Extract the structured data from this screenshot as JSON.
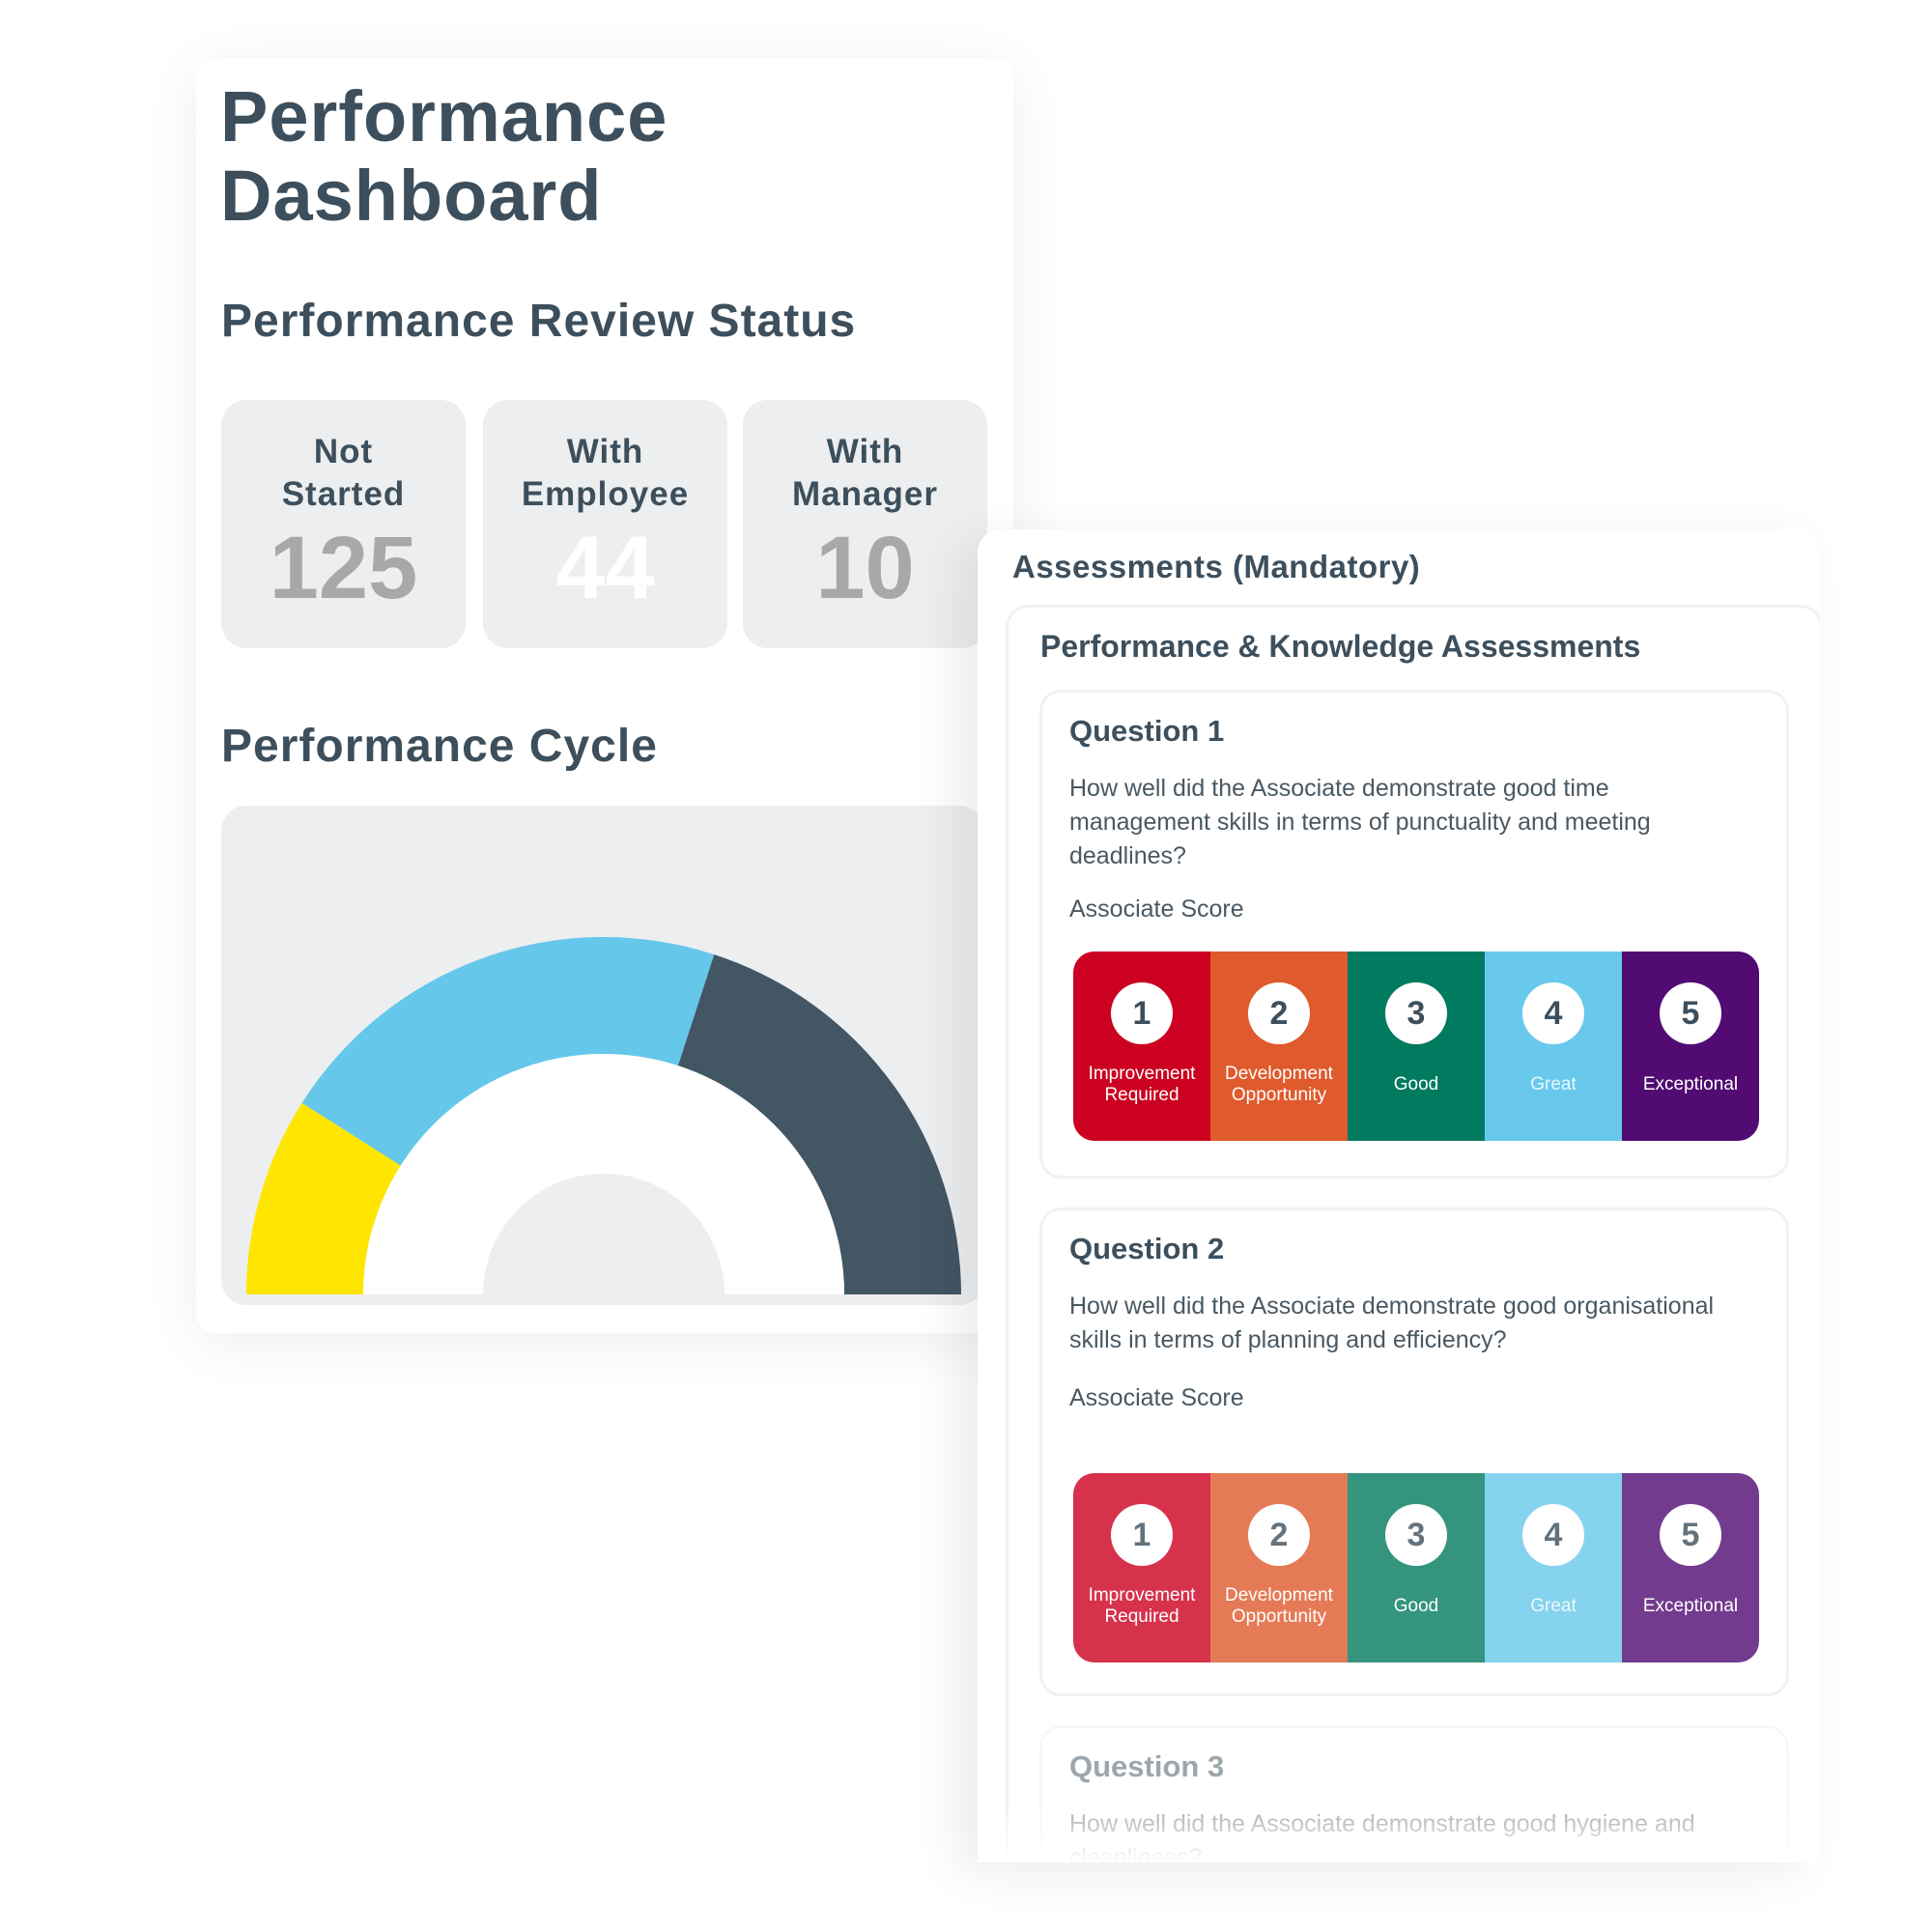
{
  "dashboard": {
    "title_line1": "Performance",
    "title_line2": "Dashboard",
    "review_status": {
      "heading": "Performance Review Status",
      "cards": [
        {
          "label_line1": "Not",
          "label_line2": "Started",
          "value": "125"
        },
        {
          "label_line1": "With",
          "label_line2": "Employee",
          "value": "44"
        },
        {
          "label_line1": "With",
          "label_line2": "Manager",
          "value": "10"
        }
      ]
    },
    "cycle": {
      "heading": "Performance Cycle",
      "gauge_segments": [
        {
          "share_percent": 18,
          "color": "#ffe600"
        },
        {
          "share_percent": 42,
          "color": "#65c7ea"
        },
        {
          "share_percent": 40,
          "color": "#435664"
        }
      ]
    }
  },
  "assessments": {
    "title": "Assessments (Mandatory)",
    "section_title": "Performance & Knowledge Assessments",
    "score_label": "Associate Score",
    "scale": [
      {
        "number": "1",
        "line1": "Improvement",
        "line2": "Required",
        "color": "#cc0020"
      },
      {
        "number": "2",
        "line1": "Development",
        "line2": "Opportunity",
        "color": "#df5a2c"
      },
      {
        "number": "3",
        "line1": "Good",
        "line2": "",
        "color": "#027a5f"
      },
      {
        "number": "4",
        "line1": "Great",
        "line2": "",
        "color": "#69c9ec"
      },
      {
        "number": "5",
        "line1": "Exceptional",
        "line2": "",
        "color": "#510b72"
      }
    ],
    "questions": [
      {
        "title": "Question 1",
        "text": "How well did the Associate demonstrate good time management skills in terms of punctuality and meeting deadlines?"
      },
      {
        "title": "Question 2",
        "text": "How well did the Associate demonstrate good organisational skills in terms of planning and efficiency?"
      },
      {
        "title": "Question 3",
        "text": "How well did the Associate demonstrate good hygiene and cleanliness?"
      }
    ]
  }
}
